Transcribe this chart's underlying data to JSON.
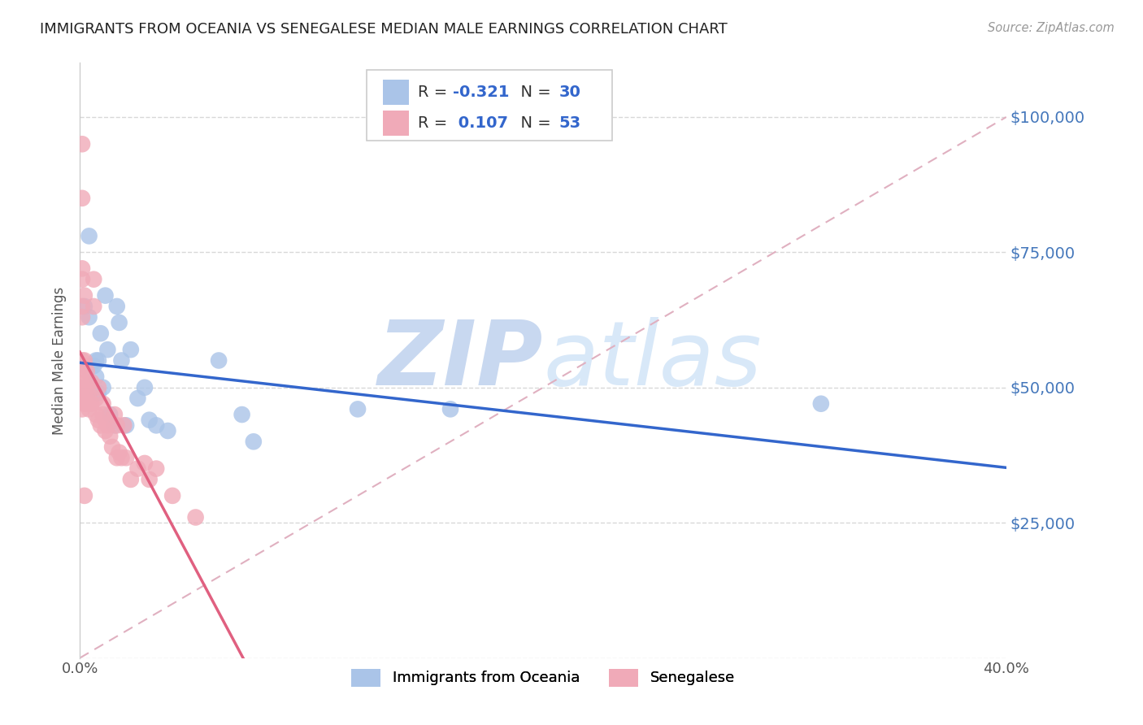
{
  "title": "IMMIGRANTS FROM OCEANIA VS SENEGALESE MEDIAN MALE EARNINGS CORRELATION CHART",
  "source": "Source: ZipAtlas.com",
  "ylabel": "Median Male Earnings",
  "xlim": [
    0.0,
    0.4
  ],
  "ylim": [
    0,
    110000
  ],
  "yticks": [
    0,
    25000,
    50000,
    75000,
    100000
  ],
  "ytick_labels": [
    "",
    "$25,000",
    "$50,000",
    "$75,000",
    "$100,000"
  ],
  "xticks": [
    0.0,
    0.1,
    0.2,
    0.3,
    0.4
  ],
  "xtick_labels": [
    "0.0%",
    "",
    "",
    "",
    "40.0%"
  ],
  "legend_labels": [
    "Immigrants from Oceania",
    "Senegalese"
  ],
  "R_oceania": -0.321,
  "N_oceania": 30,
  "R_senegalese": 0.107,
  "N_senegalese": 53,
  "background_color": "#ffffff",
  "grid_color": "#d8d8d8",
  "oceania_color": "#aac4e8",
  "senegalese_color": "#f0aab8",
  "oceania_line_color": "#3366cc",
  "senegalese_line_color": "#e06080",
  "dashed_line_color": "#e0b0c0",
  "axis_label_color": "#4477bb",
  "title_color": "#222222",
  "watermark_color": "#dde8f5",
  "oceania_x": [
    0.002,
    0.004,
    0.004,
    0.006,
    0.007,
    0.007,
    0.008,
    0.008,
    0.009,
    0.01,
    0.011,
    0.012,
    0.013,
    0.015,
    0.016,
    0.017,
    0.018,
    0.02,
    0.022,
    0.025,
    0.028,
    0.03,
    0.033,
    0.038,
    0.06,
    0.07,
    0.075,
    0.12,
    0.16,
    0.32
  ],
  "oceania_y": [
    65000,
    63000,
    78000,
    54000,
    55000,
    52000,
    49000,
    55000,
    60000,
    50000,
    67000,
    57000,
    45000,
    43000,
    65000,
    62000,
    55000,
    43000,
    57000,
    48000,
    50000,
    44000,
    43000,
    42000,
    55000,
    45000,
    40000,
    46000,
    46000,
    47000
  ],
  "senegalese_x": [
    0.001,
    0.001,
    0.001,
    0.001,
    0.001,
    0.001,
    0.001,
    0.001,
    0.001,
    0.001,
    0.002,
    0.002,
    0.002,
    0.002,
    0.002,
    0.003,
    0.003,
    0.003,
    0.004,
    0.004,
    0.005,
    0.005,
    0.006,
    0.006,
    0.007,
    0.007,
    0.008,
    0.008,
    0.009,
    0.01,
    0.01,
    0.011,
    0.011,
    0.012,
    0.013,
    0.014,
    0.015,
    0.016,
    0.016,
    0.017,
    0.018,
    0.019,
    0.02,
    0.022,
    0.025,
    0.028,
    0.03,
    0.033,
    0.04,
    0.05,
    0.001,
    0.002,
    0.002
  ],
  "senegalese_y": [
    85000,
    72000,
    70000,
    65000,
    63000,
    55000,
    52000,
    50000,
    48000,
    46000,
    55000,
    54000,
    51000,
    49000,
    47000,
    53000,
    50000,
    47000,
    48000,
    46000,
    51000,
    47000,
    70000,
    65000,
    48000,
    45000,
    50000,
    44000,
    43000,
    47000,
    45000,
    44000,
    42000,
    43000,
    41000,
    39000,
    45000,
    43000,
    37000,
    38000,
    37000,
    43000,
    37000,
    33000,
    35000,
    36000,
    33000,
    35000,
    30000,
    26000,
    95000,
    67000,
    30000
  ]
}
